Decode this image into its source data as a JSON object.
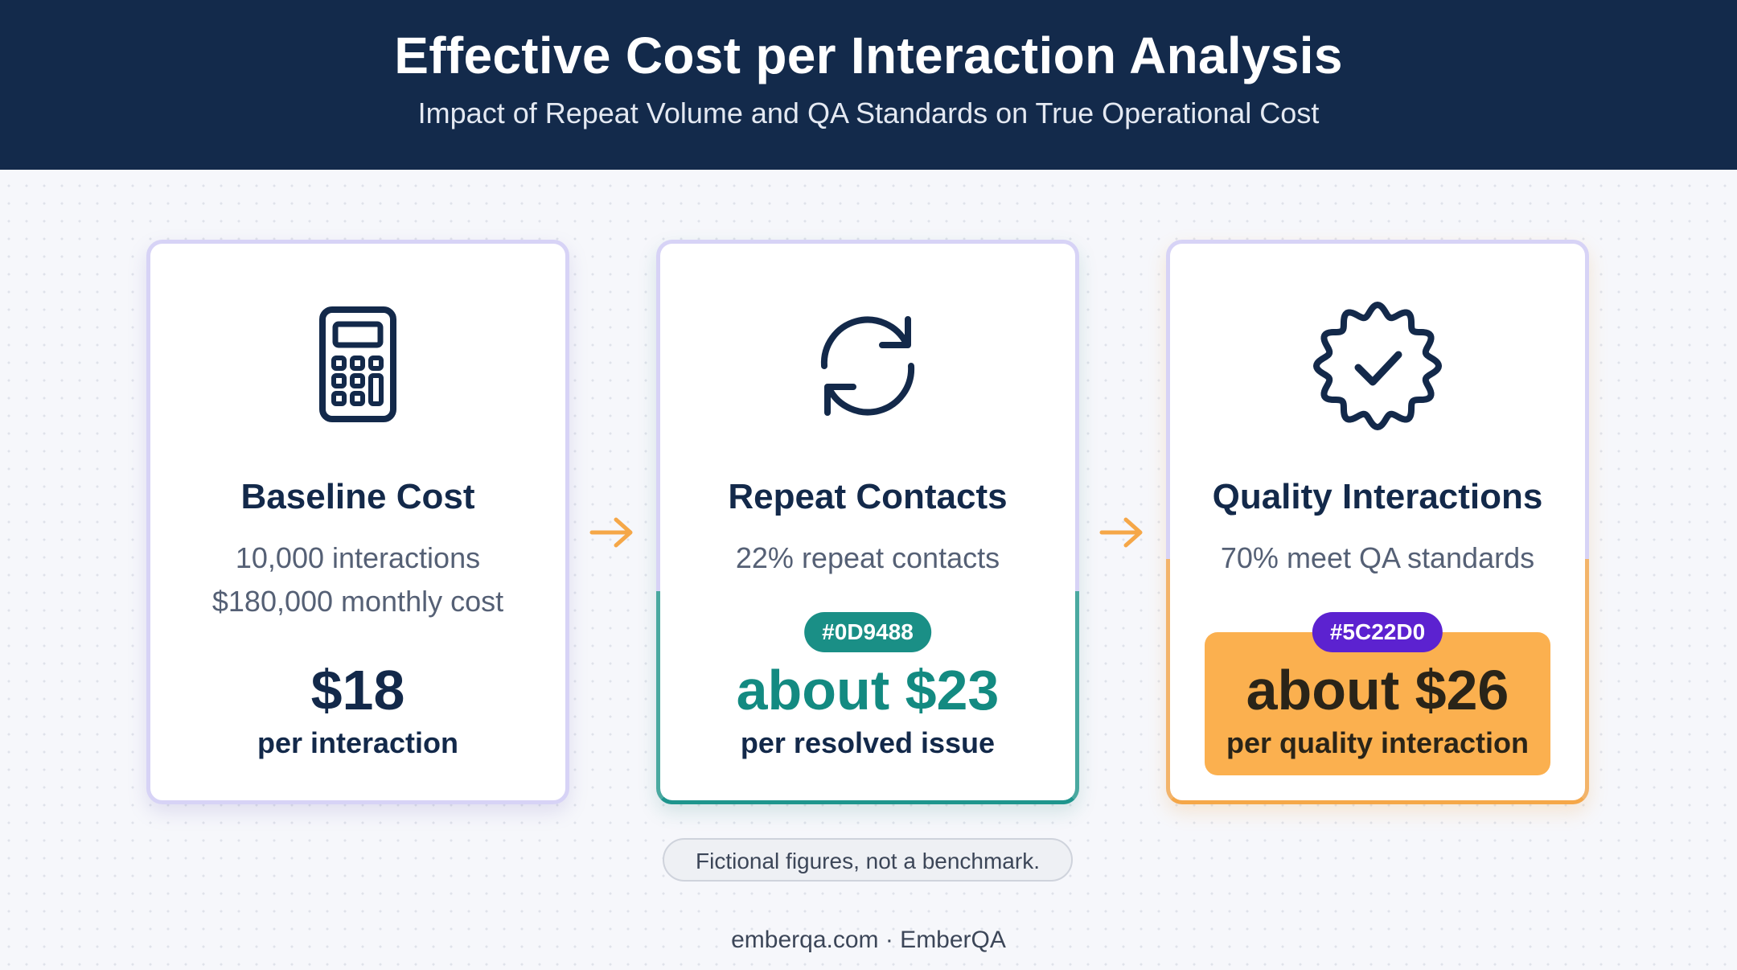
{
  "header": {
    "title": "Effective Cost per Interaction Analysis",
    "subtitle": "Impact of Repeat Volume and QA Standards on True Operational Cost"
  },
  "cards": [
    {
      "icon": "calculator-icon",
      "title": "Baseline Cost",
      "lines": [
        "10,000 interactions",
        "$180,000 monthly cost"
      ],
      "value": "$18",
      "unit": "per interaction"
    },
    {
      "icon": "refresh-icon",
      "title": "Repeat Contacts",
      "lines": [
        "22% repeat contacts"
      ],
      "badge": "#0D9488",
      "value": "about $23",
      "unit": "per resolved issue"
    },
    {
      "icon": "verified-badge-icon",
      "title": "Quality Interactions",
      "lines": [
        "70% meet QA standards"
      ],
      "badge": "#5C22D0",
      "value": "about $26",
      "unit": "per quality interaction"
    }
  ],
  "note": "Fictional figures, not a benchmark.",
  "footer": "emberqa.com · EmberQA",
  "colors": {
    "header_bg": "#132a4b",
    "teal": "#0D9488",
    "purple": "#5C22D0",
    "orange": "#fbb04f",
    "arrow": "#f5a748"
  }
}
